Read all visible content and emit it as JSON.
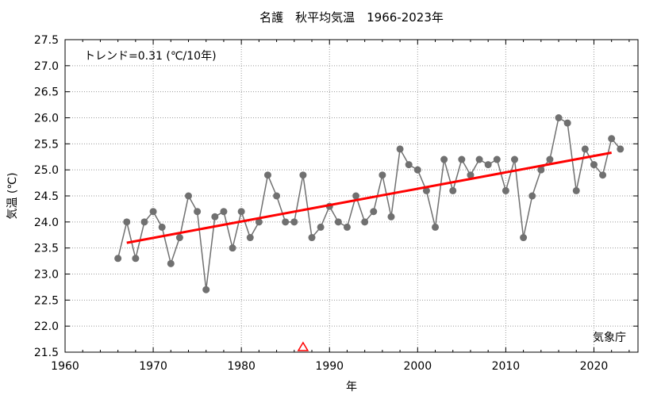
{
  "chart_data": {
    "type": "line",
    "title": "名護　秋平均気温　1966-2023年",
    "xlabel": "年",
    "ylabel": "気温 (℃)",
    "trend_label": "トレンド=0.31 (℃/10年)",
    "source_label": "気象庁",
    "xlim": [
      1960,
      2025
    ],
    "ylim": [
      21.5,
      27.5
    ],
    "xticks": [
      1960,
      1970,
      1980,
      1990,
      2000,
      2010,
      2020
    ],
    "yticks": [
      "21.5",
      "22.0",
      "22.5",
      "23.0",
      "23.5",
      "24.0",
      "24.5",
      "25.0",
      "25.5",
      "26.0",
      "26.5",
      "27.0",
      "27.5"
    ],
    "grid": true,
    "series": [
      {
        "x": [
          1966,
          1967,
          1968,
          1969,
          1970,
          1971,
          1972,
          1973,
          1974,
          1975,
          1976,
          1977,
          1978,
          1979,
          1980,
          1981,
          1982,
          1983,
          1984,
          1985,
          1986,
          1987,
          1988,
          1989,
          1990,
          1991,
          1992,
          1993,
          1994,
          1995,
          1996,
          1997,
          1998,
          1999,
          2000,
          2001,
          2002,
          2003,
          2004,
          2005,
          2006,
          2007,
          2008,
          2009,
          2010,
          2011,
          2012,
          2013,
          2014,
          2015,
          2016,
          2017,
          2018,
          2019,
          2020,
          2021,
          2022,
          2023
        ],
        "values": [
          23.3,
          24.0,
          23.3,
          24.0,
          24.2,
          23.9,
          23.2,
          23.7,
          24.5,
          24.2,
          22.7,
          24.1,
          24.2,
          23.5,
          24.2,
          23.7,
          24.0,
          24.9,
          24.5,
          24.0,
          24.0,
          24.9,
          23.7,
          23.9,
          24.3,
          24.0,
          23.9,
          24.5,
          24.0,
          24.2,
          24.9,
          24.1,
          25.4,
          25.1,
          25.0,
          24.6,
          23.9,
          25.2,
          24.6,
          25.2,
          24.9,
          25.2,
          25.1,
          25.2,
          24.6,
          25.2,
          23.7,
          24.5,
          25.0,
          25.2,
          26.0,
          25.9,
          24.6,
          25.4,
          25.1,
          24.9,
          25.6,
          25.4
        ],
        "color": "#707070"
      }
    ],
    "trend": {
      "x": [
        1967,
        2022
      ],
      "y": [
        23.6,
        25.33
      ],
      "color": "#ff0000"
    },
    "marker": {
      "x": 1987,
      "symbol": "triangle",
      "color": "#ff0000"
    }
  }
}
